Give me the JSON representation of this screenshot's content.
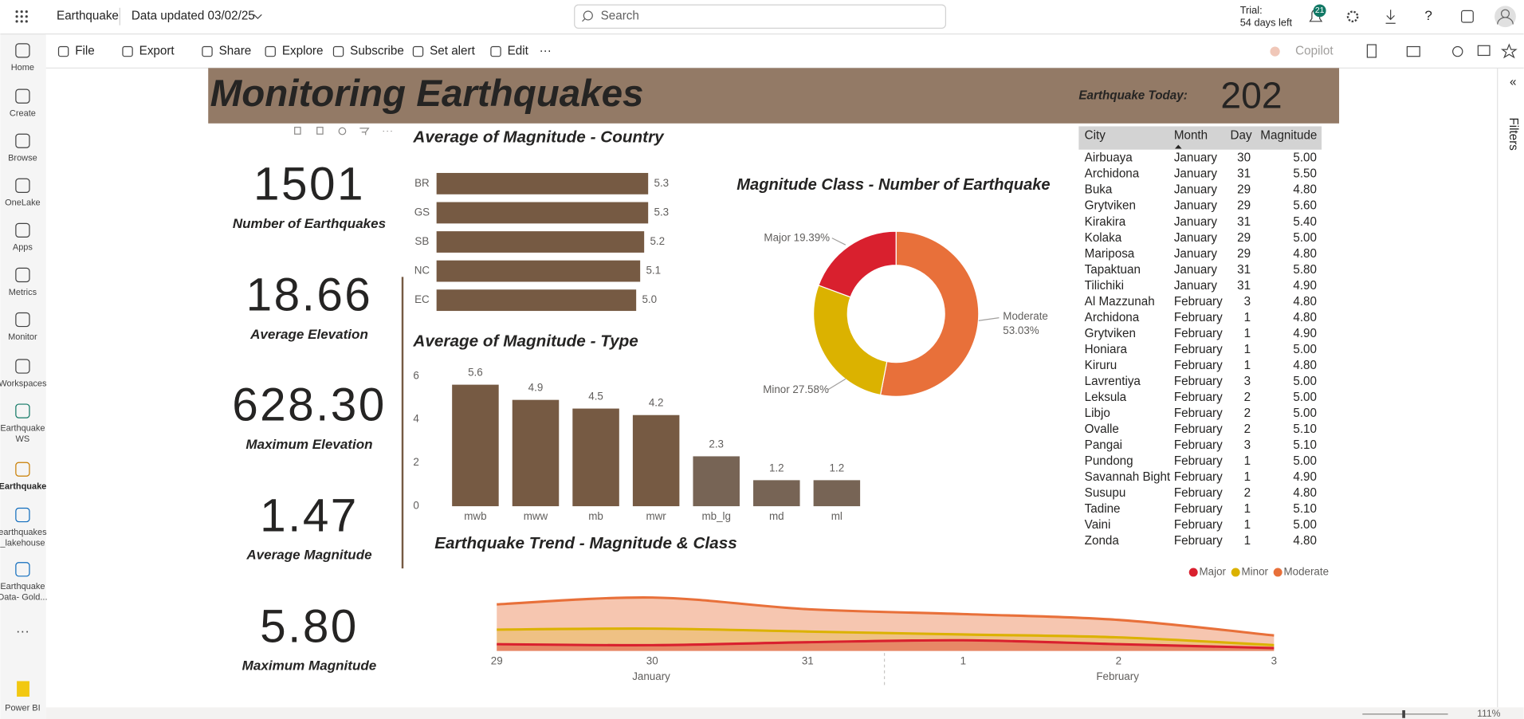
{
  "topbar": {
    "app": "Earthquake",
    "updated": "Data updated 03/02/25",
    "search": "Search",
    "trial": "Trial:",
    "trial_left": "54 days left",
    "notifications": "21"
  },
  "nav": [
    [
      "Home"
    ],
    [
      "Create"
    ],
    [
      "Browse"
    ],
    [
      "OneLake"
    ],
    [
      "Apps"
    ],
    [
      "Metrics"
    ],
    [
      "Monitor"
    ],
    [
      "Workspaces"
    ],
    [
      "Earthquake",
      "WS"
    ],
    [
      "Earthquake"
    ],
    [
      "earthquakes",
      "_lakehouse"
    ],
    [
      "Earthquake",
      "Data- Gold..."
    ],
    [
      "Power BI"
    ]
  ],
  "toolbar": {
    "items": [
      "File",
      "Export",
      "Share",
      "Explore",
      "Subscribe",
      "Set alert",
      "Edit"
    ],
    "copilot": "Copilot"
  },
  "filters": "Filters",
  "zoom": "111%",
  "report": {
    "title": "Monitoring Earthquakes",
    "today_label": "Earthquake Today:",
    "today_value": "202",
    "cards": [
      {
        "value": "1501",
        "label": "Number of Earthquakes"
      },
      {
        "value": "18.66",
        "label": "Average Elevation"
      },
      {
        "value": "628.30",
        "label": "Maximum Elevation"
      },
      {
        "value": "1.47",
        "label": "Average Magnitude"
      },
      {
        "value": "5.80",
        "label": "Maximum Magnitude"
      }
    ],
    "country_chart": {
      "type": "hbar",
      "title": "Average of Magnitude - Country",
      "categories": [
        "BR",
        "GS",
        "SB",
        "NC",
        "EC"
      ],
      "values": [
        5.3,
        5.3,
        5.2,
        5.1,
        5.0
      ],
      "value_labels": [
        "5.3",
        "5.3",
        "5.2",
        "5.1",
        "5.0"
      ],
      "color": "#765a43"
    },
    "type_chart": {
      "type": "bar",
      "title": "Average of Magnitude - Type",
      "categories": [
        "mwb",
        "mww",
        "mb",
        "mwr",
        "mb_lg",
        "md",
        "ml"
      ],
      "values": [
        5.6,
        4.9,
        4.5,
        4.2,
        2.3,
        1.2,
        1.2
      ],
      "colors": [
        "#765a43",
        "#765a43",
        "#765a43",
        "#765a43",
        "#776455",
        "#776455",
        "#776455"
      ],
      "ylim": [
        0,
        6
      ],
      "yticks": [
        0,
        2,
        4,
        6
      ]
    },
    "class_chart": {
      "type": "pie",
      "title": "Magnitude Class - Number of Earthquake",
      "categories": [
        "Moderate",
        "Minor",
        "Major"
      ],
      "values": [
        53.03,
        27.58,
        19.39
      ],
      "value_labels": [
        "53.03%",
        "27.58%",
        "19.39%"
      ],
      "colors": [
        "#e8703a",
        "#dbb200",
        "#d9202e"
      ]
    },
    "trend_chart": {
      "type": "area",
      "title": "Earthquake Trend - Magnitude & Class",
      "x": [
        "29",
        "30",
        "31",
        "1",
        "2",
        "3"
      ],
      "months": [
        "January",
        "February"
      ],
      "ylim": [
        0,
        60
      ],
      "series": [
        {
          "name": "Major",
          "color": "#d9202e",
          "values": [
            7,
            6,
            9,
            11,
            7,
            3
          ]
        },
        {
          "name": "Minor",
          "color": "#dbb200",
          "values": [
            22,
            23,
            20,
            17,
            14,
            6
          ]
        },
        {
          "name": "Moderate",
          "color": "#e8703a",
          "values": [
            48,
            55,
            43,
            38,
            32,
            16
          ]
        }
      ]
    },
    "table": {
      "headers": [
        "City",
        "Month",
        "Day",
        "Magnitude"
      ],
      "rows": [
        [
          "Airbuaya",
          "January",
          "30",
          "5.00"
        ],
        [
          "Archidona",
          "January",
          "31",
          "5.50"
        ],
        [
          "Buka",
          "January",
          "29",
          "4.80"
        ],
        [
          "Grytviken",
          "January",
          "29",
          "5.60"
        ],
        [
          "Kirakira",
          "January",
          "31",
          "5.40"
        ],
        [
          "Kolaka",
          "January",
          "29",
          "5.00"
        ],
        [
          "Mariposa",
          "January",
          "29",
          "4.80"
        ],
        [
          "Tapaktuan",
          "January",
          "31",
          "5.80"
        ],
        [
          "Tilichiki",
          "January",
          "31",
          "4.90"
        ],
        [
          "Al Mazzunah",
          "February",
          "3",
          "4.80"
        ],
        [
          "Archidona",
          "February",
          "1",
          "4.80"
        ],
        [
          "Grytviken",
          "February",
          "1",
          "4.90"
        ],
        [
          "Honiara",
          "February",
          "1",
          "5.00"
        ],
        [
          "Kiruru",
          "February",
          "1",
          "4.80"
        ],
        [
          "Lavrentiya",
          "February",
          "3",
          "5.00"
        ],
        [
          "Leksula",
          "February",
          "2",
          "5.00"
        ],
        [
          "Libjo",
          "February",
          "2",
          "5.00"
        ],
        [
          "Ovalle",
          "February",
          "2",
          "5.10"
        ],
        [
          "Pangai",
          "February",
          "3",
          "5.10"
        ],
        [
          "Pundong",
          "February",
          "1",
          "5.00"
        ],
        [
          "Savannah Bight",
          "February",
          "1",
          "4.90"
        ],
        [
          "Susupu",
          "February",
          "2",
          "4.80"
        ],
        [
          "Tadine",
          "February",
          "1",
          "5.10"
        ],
        [
          "Vaini",
          "February",
          "1",
          "5.00"
        ],
        [
          "Zonda",
          "February",
          "1",
          "4.80"
        ]
      ]
    }
  }
}
